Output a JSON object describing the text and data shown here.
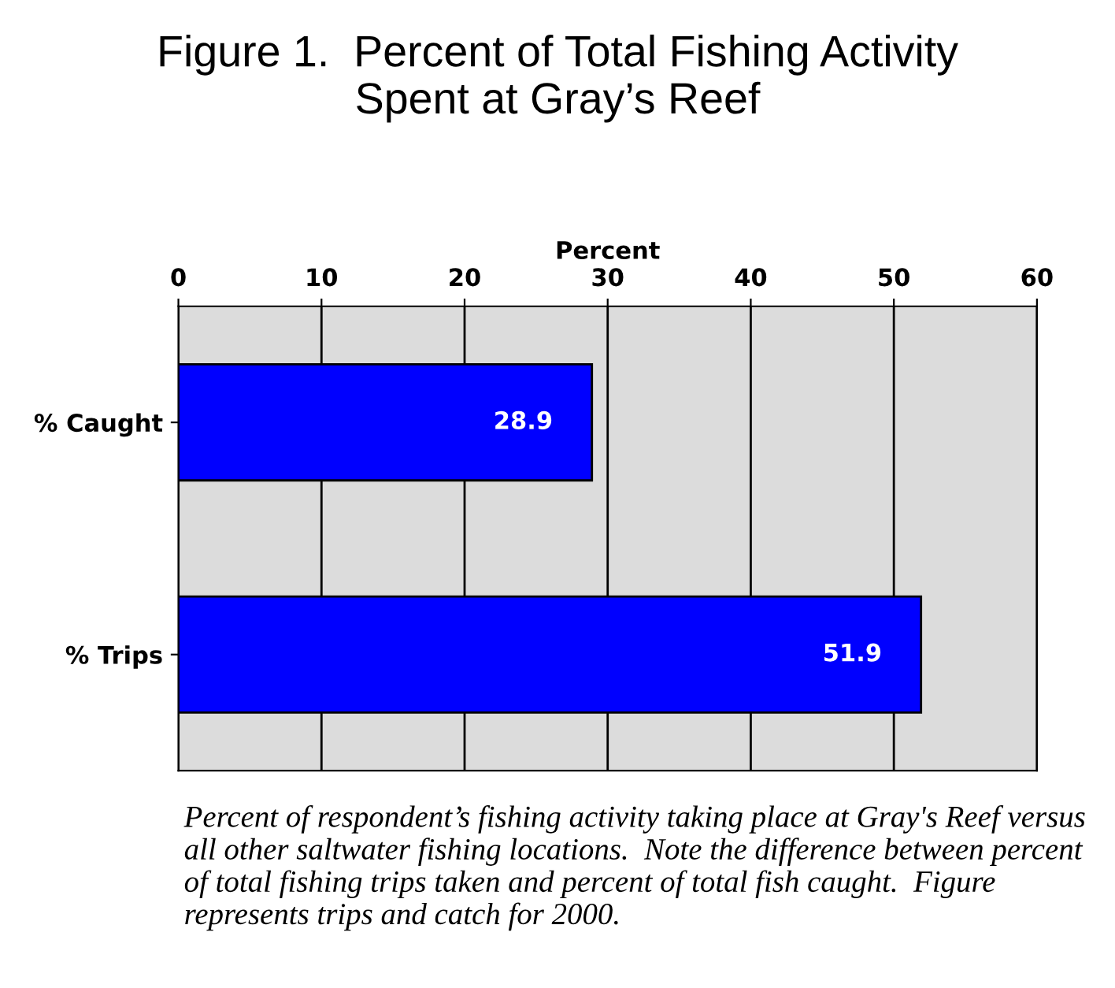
{
  "chart_data": {
    "type": "bar",
    "orientation": "horizontal",
    "title": "Figure 1.  Percent of Total Fishing Activity\nSpent at Gray’s Reef",
    "xlabel": "Percent",
    "categories": [
      "% Caught",
      "% Trips"
    ],
    "values": [
      28.9,
      51.9
    ],
    "color": "#0000ff",
    "xlim": [
      0,
      60
    ],
    "xticks": [
      0,
      10,
      20,
      30,
      40,
      50,
      60
    ],
    "grid": "x",
    "data_labels": true,
    "annotations": [
      "Percent of respondent’s fishing activity taking place at Gray's Reef versus all other saltwater fishing locations.  Note the difference between percent of total fishing trips taken and percent of total fish caught.  Figure represents trips and catch for 2000."
    ]
  }
}
